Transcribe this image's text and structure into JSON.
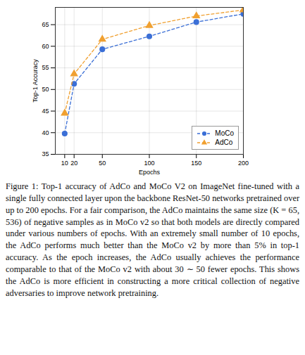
{
  "chart_data": {
    "type": "line",
    "xlabel": "Epochs",
    "ylabel": "Top-1 Accuracy",
    "x": [
      10,
      20,
      50,
      100,
      150,
      200
    ],
    "series": [
      {
        "name": "MoCo",
        "color": "#3b6fd6",
        "marker": "circle",
        "line_style": "dashed",
        "values": [
          39.8,
          51.3,
          59.3,
          62.3,
          65.6,
          67.5
        ]
      },
      {
        "name": "AdCo",
        "color": "#f0a030",
        "marker": "triangle",
        "line_style": "dashed",
        "values": [
          44.5,
          53.6,
          61.6,
          64.8,
          67.0,
          68.4
        ]
      }
    ],
    "xlim": [
      0,
      200
    ],
    "xticks": [
      10,
      20,
      50,
      100,
      150,
      200
    ],
    "ylim": [
      35,
      69
    ],
    "yticks": [
      35,
      40,
      45,
      50,
      55,
      60,
      65
    ],
    "grid": true,
    "legend": "lower right",
    "caption": "Figure 1: Top-1 accuracy of AdCo and MoCo V2 on ImageNet fine-tuned with a single fully connected layer upon the backbone ResNet-50 networks pretrained over up to 200 epochs. For a fair comparison, the AdCo maintains the same size (K = 65, 536) of negative samples as in MoCo v2 so that both models are directly compared under various numbers of epochs. With an extremely small number of 10 epochs, the AdCo performs much better than the MoCo v2 by more than 5% in top-1 accuracy. As the epoch increases, the AdCo usually achieves the performance comparable to that of the MoCo v2 with about 30 ∼ 50 fewer epochs. This shows the AdCo is more efficient in constructing a more critical collection of negative adversaries to improve network pretraining."
  }
}
